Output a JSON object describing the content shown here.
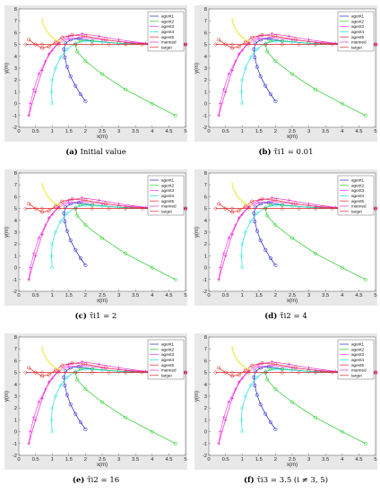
{
  "colors": {
    "agent1": "#2222cc",
    "agent2": "#22cc22",
    "agent3": "#ff33ff",
    "agent4": "#22dddd",
    "agent5": "#ee2222",
    "manned": "#e030c0",
    "target": "#dd2222",
    "yellow_track": "#f2ee70",
    "panel_bg": "#e8e8e8"
  },
  "panels": [
    {
      "caption_label": "(a)",
      "caption_text": "Initial value"
    },
    {
      "caption_label": "(b)",
      "caption_text": "τ̄i1 = 0.01"
    },
    {
      "caption_label": "(c)",
      "caption_text": "τ̄i1 = 2"
    },
    {
      "caption_label": "(d)",
      "caption_text": "τ̄i2 = 4"
    },
    {
      "caption_label": "(e)",
      "caption_text": "τ̄i2 = 16"
    },
    {
      "caption_label": "(f)",
      "caption_text": "τ̄i3 = 3.5 (i ≠ 3, 5)"
    }
  ],
  "chart_data": {
    "type": "line",
    "xlabel": "x(m)",
    "ylabel": "y(m)",
    "xlim": [
      0,
      5
    ],
    "ylim": [
      -2,
      8
    ],
    "xticks": [
      "0",
      "0.5",
      "1",
      "1.5",
      "2",
      "2.5",
      "3",
      "3.5",
      "4",
      "4.5",
      "5"
    ],
    "yticks": [
      "-2",
      "-1",
      "0",
      "1",
      "2",
      "3",
      "4",
      "5",
      "6",
      "7",
      "8"
    ],
    "legend_position": "top-right",
    "legend": [
      "agent1",
      "agent2",
      "agent3",
      "agent4",
      "agent5",
      "manned",
      "target"
    ],
    "series": [
      {
        "name": "agent1",
        "x": [
          2.0,
          1.85,
          1.7,
          1.55,
          1.45,
          1.38,
          1.35,
          1.4,
          1.55,
          1.8,
          2.2,
          3.0,
          4.0,
          5.0
        ],
        "y": [
          0.2,
          0.8,
          1.5,
          2.3,
          3.1,
          3.9,
          4.6,
          5.1,
          5.4,
          5.5,
          5.3,
          5.1,
          5.0,
          5.0
        ]
      },
      {
        "name": "agent2",
        "x": [
          4.7,
          4.0,
          3.2,
          2.5,
          2.0,
          1.75,
          1.7,
          1.85,
          2.2,
          3.0,
          4.0,
          5.0
        ],
        "y": [
          -1.0,
          0.0,
          1.2,
          2.5,
          3.6,
          4.4,
          5.0,
          5.3,
          5.3,
          5.1,
          5.0,
          5.0
        ]
      },
      {
        "name": "agent3",
        "x": [
          0.3,
          0.35,
          0.45,
          0.6,
          0.8,
          1.0,
          1.2,
          1.5,
          1.9,
          2.5,
          3.2,
          4.0,
          5.0
        ],
        "y": [
          -1.0,
          0.0,
          1.2,
          2.5,
          3.6,
          4.5,
          5.1,
          5.5,
          5.6,
          5.4,
          5.2,
          5.05,
          5.0
        ]
      },
      {
        "name": "agent4",
        "x": [
          1.0,
          0.98,
          1.0,
          1.1,
          1.25,
          1.45,
          1.7,
          2.0,
          2.5,
          3.2,
          4.0,
          5.0
        ],
        "y": [
          0.0,
          1.0,
          2.0,
          3.0,
          3.9,
          4.6,
          5.1,
          5.3,
          5.2,
          5.05,
          5.0,
          5.0
        ]
      },
      {
        "name": "agent5",
        "x": [
          0.3,
          0.5,
          0.7,
          0.9,
          1.1,
          1.3,
          1.6,
          2.0,
          2.6,
          3.4,
          4.2,
          5.0
        ],
        "y": [
          5.4,
          5.0,
          4.7,
          4.8,
          5.2,
          5.6,
          5.8,
          5.7,
          5.4,
          5.1,
          5.0,
          5.0
        ]
      },
      {
        "name": "manned",
        "x": [
          0.3,
          0.5,
          0.7,
          0.9,
          1.2,
          1.5,
          1.9,
          2.4,
          3.0,
          3.8,
          4.5,
          5.0
        ],
        "y": [
          -1.0,
          1.0,
          2.8,
          4.2,
          5.2,
          5.7,
          5.9,
          5.7,
          5.4,
          5.1,
          5.0,
          5.0
        ]
      },
      {
        "name": "target",
        "x": [
          0.2,
          0.7,
          1.2,
          1.7,
          2.2,
          2.7,
          3.2,
          3.7,
          4.2,
          4.7,
          5.0
        ],
        "y": [
          5.0,
          5.0,
          5.0,
          5.0,
          5.0,
          5.0,
          5.0,
          5.0,
          5.0,
          5.0,
          5.0
        ]
      },
      {
        "x": [
          0.7,
          0.72,
          0.8,
          0.9,
          1.0,
          1.1,
          1.2,
          1.3
        ],
        "y": [
          7.2,
          6.8,
          6.3,
          5.9,
          5.6,
          5.4,
          5.3,
          5.2
        ]
      }
    ]
  }
}
